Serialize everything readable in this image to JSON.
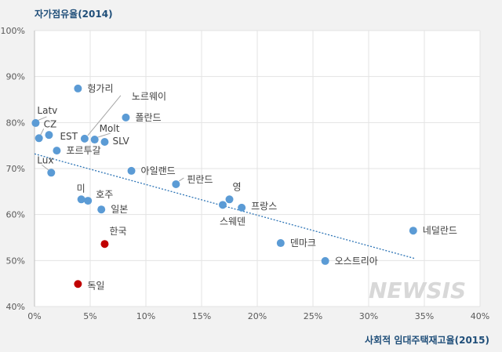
{
  "chart_data": {
    "type": "scatter",
    "ylabel": "자가점유율(2014)",
    "xlabel": "사회적 임대주택재고율(2015)",
    "xlim": [
      0,
      40
    ],
    "ylim": [
      40,
      100
    ],
    "x_ticks": [
      "0%",
      "5%",
      "10%",
      "15%",
      "20%",
      "25%",
      "30%",
      "35%",
      "40%"
    ],
    "y_ticks": [
      "40%",
      "50%",
      "60%",
      "70%",
      "80%",
      "90%",
      "100%"
    ],
    "grid": true,
    "colors": {
      "default": "#5b9bd5",
      "highlight": "#c00000",
      "trend": "#2e75b6"
    },
    "points": [
      {
        "label": "Latv",
        "x": 0.1,
        "y": 79.9
      },
      {
        "label": "CZ",
        "x": 0.4,
        "y": 76.6
      },
      {
        "label": "EST",
        "x": 1.3,
        "y": 77.3
      },
      {
        "label": "Lux",
        "x": 1.5,
        "y": 69.1
      },
      {
        "label": "포르투갈",
        "x": 2.0,
        "y": 73.9
      },
      {
        "label": "헝가리",
        "x": 3.9,
        "y": 87.4
      },
      {
        "label": "독일",
        "x": 3.9,
        "y": 44.9,
        "highlight": true
      },
      {
        "label": "미",
        "x": 4.2,
        "y": 63.3
      },
      {
        "label": "호주",
        "x": 4.8,
        "y": 63.0
      },
      {
        "label": "노르웨이",
        "x": 4.5,
        "y": 76.5
      },
      {
        "label": "Molt",
        "x": 5.4,
        "y": 76.3
      },
      {
        "label": "SLV",
        "x": 6.3,
        "y": 75.8
      },
      {
        "label": "일본",
        "x": 6.0,
        "y": 61.1
      },
      {
        "label": "한국",
        "x": 6.3,
        "y": 53.6,
        "highlight": true
      },
      {
        "label": "폴란드",
        "x": 8.2,
        "y": 81.1
      },
      {
        "label": "아일랜드",
        "x": 8.7,
        "y": 69.5
      },
      {
        "label": "핀란드",
        "x": 12.7,
        "y": 66.6
      },
      {
        "label": "스웨덴",
        "x": 16.9,
        "y": 62.1
      },
      {
        "label": "영",
        "x": 17.5,
        "y": 63.3
      },
      {
        "label": "프랑스",
        "x": 18.6,
        "y": 61.5
      },
      {
        "label": "덴마크",
        "x": 22.1,
        "y": 53.8
      },
      {
        "label": "오스트리아",
        "x": 26.1,
        "y": 49.9
      },
      {
        "label": "네덜란드",
        "x": 34.0,
        "y": 56.5
      }
    ],
    "trendline": {
      "x": [
        0,
        34.2
      ],
      "y": [
        73.2,
        50.4
      ]
    }
  },
  "watermark": "NEWSIS"
}
